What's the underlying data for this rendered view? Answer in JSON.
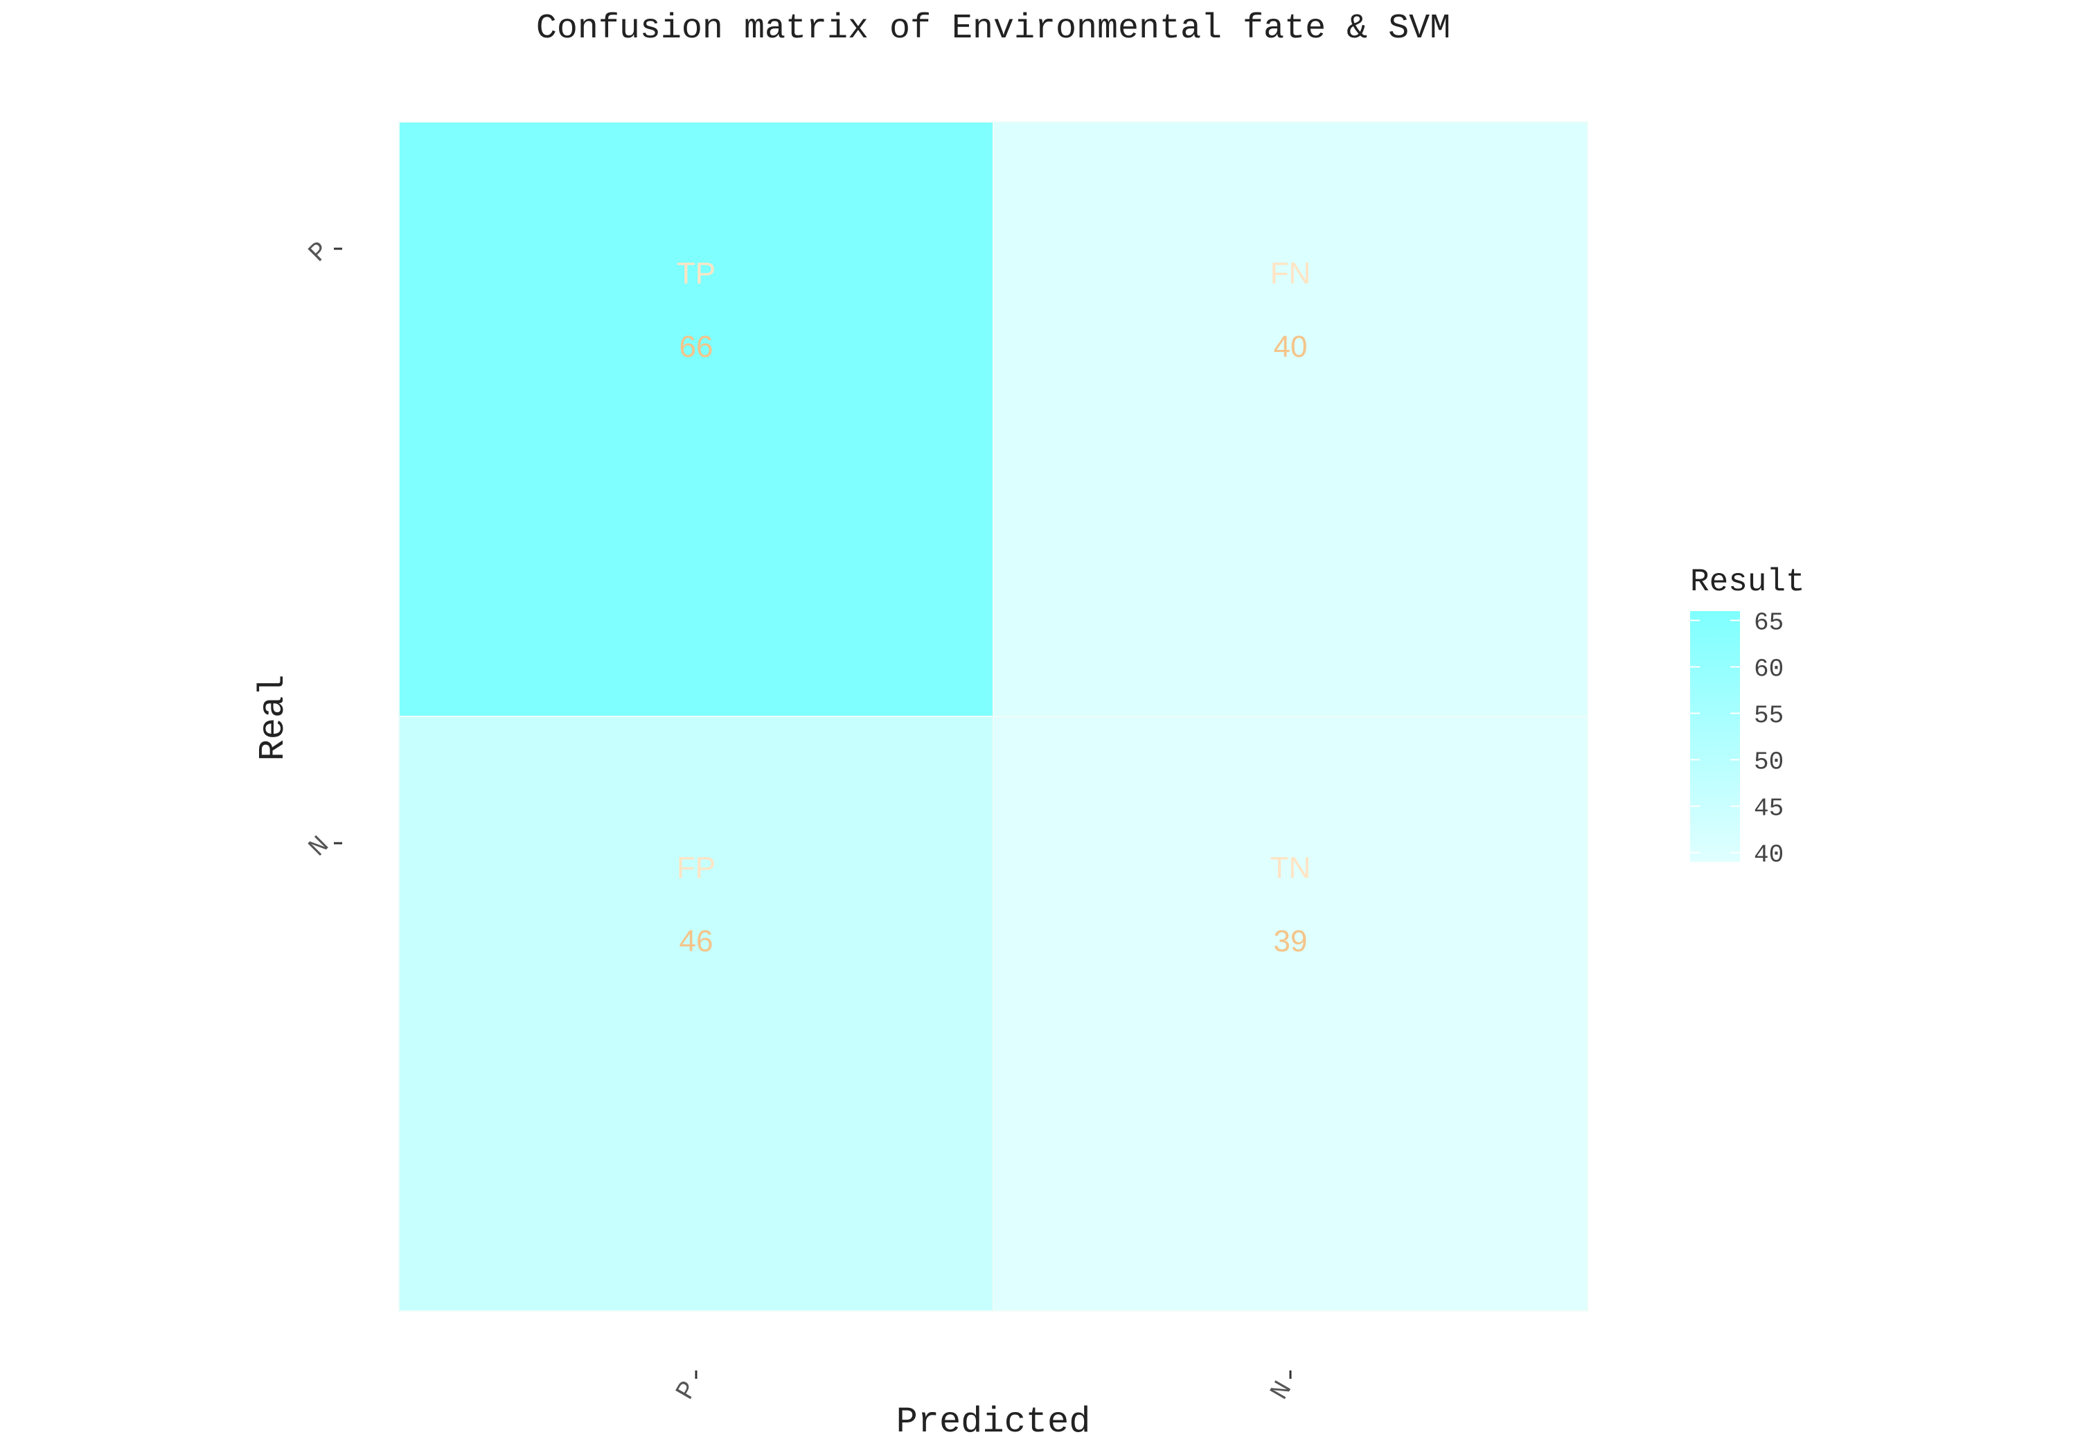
{
  "chart_data": {
    "type": "heatmap",
    "title": "Confusion matrix of Environmental fate & SVM",
    "xlabel": "Predicted",
    "ylabel": "Real",
    "x_categories": [
      "P",
      "N"
    ],
    "y_categories": [
      "P",
      "N"
    ],
    "cells": [
      {
        "real": "P",
        "predicted": "P",
        "label": "TP",
        "value": 66
      },
      {
        "real": "P",
        "predicted": "N",
        "label": "FN",
        "value": 40
      },
      {
        "real": "N",
        "predicted": "P",
        "label": "FP",
        "value": 46
      },
      {
        "real": "N",
        "predicted": "N",
        "label": "TN",
        "value": 39
      }
    ],
    "legend": {
      "title": "Result",
      "ticks": [
        65,
        60,
        55,
        50,
        45,
        40
      ],
      "placement": "right"
    },
    "colors": {
      "low": "#E0FFFF",
      "high": "#7FFFFF",
      "cell_label": "#FFE4C4",
      "cell_value": "#F4C48A"
    },
    "grid": false
  }
}
